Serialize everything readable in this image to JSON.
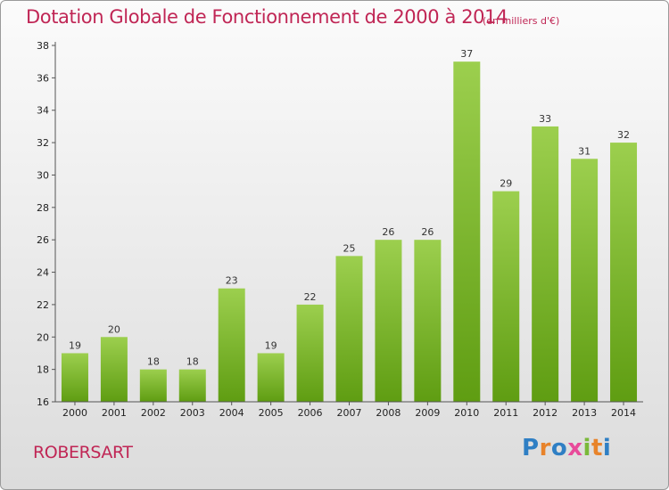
{
  "header": {
    "title": "Dotation Globale de Fonctionnement de 2000 à 2014",
    "unit": "(en milliers d'€)"
  },
  "footer": {
    "commune": "ROBERSART",
    "logo": "Proxiti"
  },
  "colors": {
    "title": "#c02655",
    "bar_light": "#9ccf4e",
    "bar_dark": "#5f9d12",
    "logo_letters": [
      "#2f7fc4",
      "#e8832a",
      "#2f7fc4",
      "#e84a9a",
      "#7ab93a",
      "#e8832a",
      "#2f7fc4"
    ]
  },
  "chart_data": {
    "type": "bar",
    "categories": [
      "2000",
      "2001",
      "2002",
      "2003",
      "2004",
      "2005",
      "2006",
      "2007",
      "2008",
      "2009",
      "2010",
      "2011",
      "2012",
      "2013",
      "2014"
    ],
    "values": [
      19,
      20,
      18,
      18,
      23,
      19,
      22,
      25,
      26,
      26,
      37,
      29,
      33,
      31,
      32
    ],
    "ylim": [
      16,
      38
    ],
    "yticks": [
      16,
      18,
      20,
      22,
      24,
      26,
      28,
      30,
      32,
      34,
      36,
      38
    ],
    "grid": false,
    "legend": "none"
  }
}
